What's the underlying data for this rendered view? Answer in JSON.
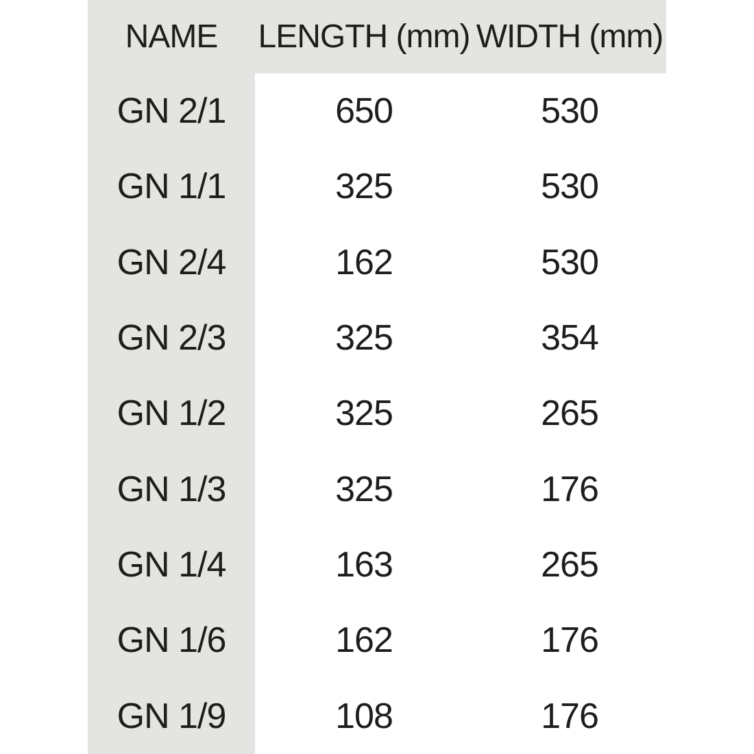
{
  "chart_data": {
    "type": "table",
    "columns": [
      "NAME",
      "LENGTH (mm)",
      "WIDTH (mm)"
    ],
    "rows": [
      [
        "GN 2/1",
        650,
        530
      ],
      [
        "GN 1/1",
        325,
        530
      ],
      [
        "GN 2/4",
        162,
        530
      ],
      [
        "GN 2/3",
        325,
        354
      ],
      [
        "GN 1/2",
        325,
        265
      ],
      [
        "GN 1/3",
        325,
        176
      ],
      [
        "GN 1/4",
        163,
        265
      ],
      [
        "GN 1/6",
        162,
        176
      ],
      [
        "GN 1/9",
        108,
        176
      ]
    ],
    "title": "",
    "layout_hints": {
      "header_background": "#e4e4e2",
      "name_column_background": "#e4e4e2",
      "body_background": "#ffffff",
      "text_alignment": "center"
    }
  },
  "colors": {
    "band_gray": "#e4e4e2",
    "text": "#1d1d1b",
    "page_bg": "#ffffff"
  }
}
